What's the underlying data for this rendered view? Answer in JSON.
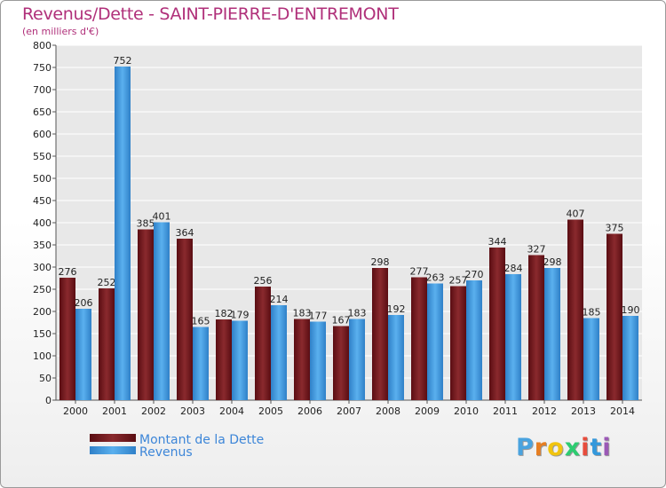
{
  "title": "Revenus/Dette - SAINT-PIERRE-D'ENTREMONT",
  "subtitle": "(en milliers d'€)",
  "logo": {
    "letters": [
      "P",
      "r",
      "o",
      "x",
      "i",
      "t",
      "i"
    ],
    "colors": [
      "#4aa3df",
      "#e67e22",
      "#f1c40f",
      "#2ecc71",
      "#e74c3c",
      "#3498db",
      "#9b59b6"
    ]
  },
  "chart_data": {
    "type": "bar",
    "categories": [
      "2000",
      "2001",
      "2002",
      "2003",
      "2004",
      "2005",
      "2006",
      "2007",
      "2008",
      "2009",
      "2010",
      "2011",
      "2012",
      "2013",
      "2014"
    ],
    "series": [
      {
        "name": "Montant de la Dette",
        "color": "#7a1f24",
        "values": [
          276,
          252,
          385,
          364,
          182,
          256,
          183,
          167,
          298,
          277,
          257,
          344,
          327,
          407,
          375
        ]
      },
      {
        "name": "Revenus",
        "color": "#3d9be0",
        "values": [
          206,
          752,
          401,
          165,
          179,
          214,
          177,
          183,
          192,
          263,
          270,
          284,
          298,
          185,
          190
        ]
      }
    ],
    "ylim": [
      0,
      800
    ],
    "yticks": [
      0,
      50,
      100,
      150,
      200,
      250,
      300,
      350,
      400,
      450,
      500,
      550,
      600,
      650,
      700,
      750,
      800
    ],
    "grid": true,
    "legend": "bottom-left"
  }
}
